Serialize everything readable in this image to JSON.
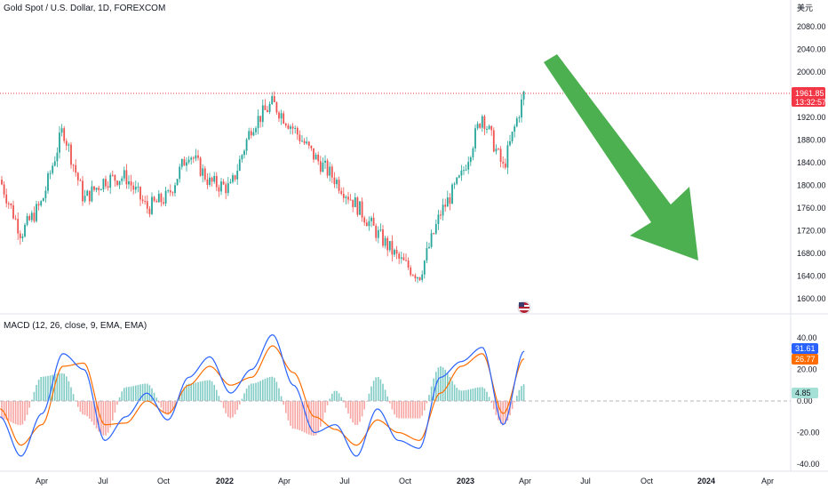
{
  "header": {
    "symbol_title": "Gold Spot / U.S. Dollar, 1D, FOREXCOM",
    "currency": "美元"
  },
  "colors": {
    "up": "#26a69a",
    "down": "#ef5350",
    "macd_line": "#2962ff",
    "signal_line": "#ff6d00",
    "hist_up": "#26a69a",
    "hist_down": "#ef5350",
    "arrow": "#4caf50",
    "price_line": "#f23645"
  },
  "price_pane": {
    "y_ticks": [
      "2080.00",
      "2040.00",
      "2000.00",
      "1920.00",
      "1880.00",
      "1840.00",
      "1800.00",
      "1760.00",
      "1720.00",
      "1680.00",
      "1640.00",
      "1600.00"
    ],
    "last_price": "1961.85",
    "countdown": "13:32:57"
  },
  "macd_pane": {
    "title": "MACD (12, 26, close, 9, EMA, EMA)",
    "y_ticks": [
      "40.00",
      "20.00",
      "0.00",
      "-20.00",
      "-40.00"
    ],
    "macd_value": "31.61",
    "signal_value": "26.77",
    "hist_value": "4.85"
  },
  "x_axis": {
    "labels": [
      "Apr",
      "Jul",
      "Oct",
      "2022",
      "Apr",
      "Jul",
      "Oct",
      "2023",
      "Apr",
      "Jul",
      "Oct",
      "2024",
      "Apr"
    ]
  },
  "chart_data": [
    {
      "type": "candlestick",
      "title": "Gold Spot / U.S. Dollar, 1D, FOREXCOM",
      "xlabel": "",
      "ylabel": "",
      "ylim": [
        1595,
        2085
      ],
      "x_ticks": [
        "Apr",
        "Jul",
        "Oct",
        "2022",
        "Apr",
        "Jul",
        "Oct",
        "2023",
        "Apr",
        "Jul",
        "Oct",
        "2024",
        "Apr"
      ],
      "series": [
        {
          "x": [
            "2021-02",
            "2021-03",
            "2021-04",
            "2021-05",
            "2021-06",
            "2021-07",
            "2021-08",
            "2021-09",
            "2021-10",
            "2021-11",
            "2021-12",
            "2022-01",
            "2022-02",
            "2022-03",
            "2022-04",
            "2022-05",
            "2022-06",
            "2022-07",
            "2022-08",
            "2022-09",
            "2022-10",
            "2022-11",
            "2022-12",
            "2023-01",
            "2023-02",
            "2023-03"
          ],
          "values": [
            1810,
            1715,
            1770,
            1900,
            1775,
            1810,
            1815,
            1760,
            1780,
            1860,
            1805,
            1795,
            1905,
            1945,
            1900,
            1850,
            1810,
            1765,
            1715,
            1670,
            1640,
            1750,
            1815,
            1925,
            1830,
            1962
          ]
        }
      ]
    },
    {
      "type": "line",
      "title": "MACD (12, 26, close, 9, EMA, EMA)",
      "ylim": [
        -42,
        45
      ],
      "series": [
        {
          "name": "MACD",
          "values": [
            -10,
            -35,
            -8,
            30,
            20,
            -25,
            -10,
            5,
            -12,
            15,
            28,
            5,
            20,
            42,
            10,
            -20,
            -15,
            -35,
            -5,
            -25,
            -30,
            15,
            25,
            34,
            -15,
            31.61
          ]
        },
        {
          "name": "Signal",
          "values": [
            -5,
            -28,
            -15,
            22,
            24,
            -15,
            -14,
            0,
            -8,
            10,
            22,
            10,
            15,
            35,
            18,
            -10,
            -18,
            -28,
            -12,
            -20,
            -25,
            5,
            22,
            30,
            -8,
            26.77
          ]
        }
      ]
    }
  ]
}
